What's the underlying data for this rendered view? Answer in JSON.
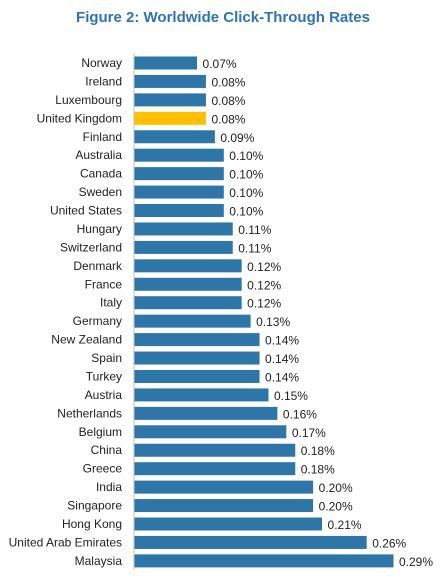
{
  "chart_data": {
    "type": "bar",
    "orientation": "horizontal",
    "title": "Figure 2: Worldwide Click-Through Rates",
    "categories": [
      "Norway",
      "Ireland",
      "Luxembourg",
      "United Kingdom",
      "Finland",
      "Australia",
      "Canada",
      "Sweden",
      "United States",
      "Hungary",
      "Switzerland",
      "Denmark",
      "France",
      "Italy",
      "Germany",
      "New Zealand",
      "Spain",
      "Turkey",
      "Austria",
      "Netherlands",
      "Belgium",
      "China",
      "Greece",
      "India",
      "Singapore",
      "Hong Kong",
      "United Arab Emirates",
      "Malaysia"
    ],
    "values": [
      0.07,
      0.08,
      0.08,
      0.08,
      0.09,
      0.1,
      0.1,
      0.1,
      0.1,
      0.11,
      0.11,
      0.12,
      0.12,
      0.12,
      0.13,
      0.14,
      0.14,
      0.14,
      0.15,
      0.16,
      0.17,
      0.18,
      0.18,
      0.2,
      0.2,
      0.21,
      0.26,
      0.29
    ],
    "value_labels": [
      "0.07%",
      "0.08%",
      "0.08%",
      "0.08%",
      "0.09%",
      "0.10%",
      "0.10%",
      "0.10%",
      "0.10%",
      "0.11%",
      "0.11%",
      "0.12%",
      "0.12%",
      "0.12%",
      "0.13%",
      "0.14%",
      "0.14%",
      "0.14%",
      "0.15%",
      "0.16%",
      "0.17%",
      "0.18%",
      "0.18%",
      "0.20%",
      "0.20%",
      "0.21%",
      "0.26%",
      "0.29%"
    ],
    "highlight": "United Kingdom",
    "bar_color": "#2e75a8",
    "highlight_color": "#ffc000",
    "title_color": "#2e74b5",
    "xlim": [
      0,
      0.29
    ],
    "grid": false,
    "legend": false
  }
}
